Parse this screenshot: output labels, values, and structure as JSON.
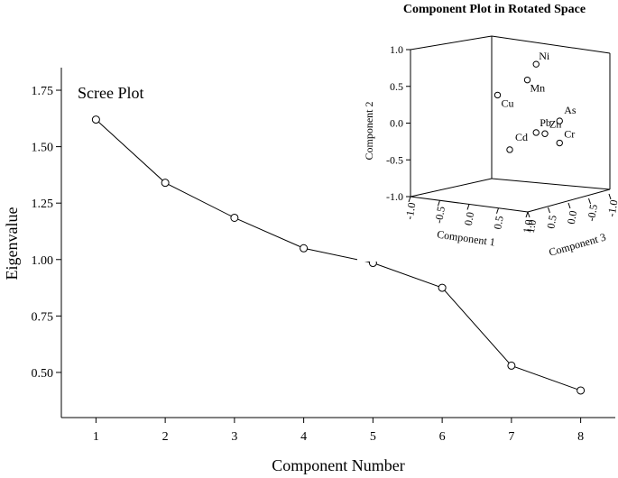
{
  "chart_data": [
    {
      "type": "line",
      "title": "Scree Plot",
      "xlabel": "Component Number",
      "ylabel": "Eigenvalue",
      "x": [
        1,
        2,
        3,
        4,
        5,
        6,
        7,
        8
      ],
      "series": [
        {
          "values": [
            1.62,
            1.34,
            1.185,
            1.05,
            0.985,
            0.875,
            0.53,
            0.42
          ]
        }
      ],
      "xticks": [
        "1",
        "2",
        "3",
        "4",
        "5",
        "6",
        "7",
        "8"
      ],
      "yticks": [
        "0.50",
        "0.75",
        "1.00",
        "1.25",
        "1.50",
        "1.75"
      ],
      "xlim": [
        0.5,
        8.5
      ],
      "ylim": [
        0.3,
        1.85
      ],
      "grid": false,
      "marker": "open-circle"
    },
    {
      "type": "scatter",
      "title": "Component Plot in Rotated Space",
      "projection": "3d",
      "axis_labels": {
        "component1": "Component 1",
        "component2": "Component 2",
        "component3": "Component 3"
      },
      "ticks": {
        "component1": [
          "-1.0",
          "-0.5",
          "0.0",
          "0.5",
          "1.0"
        ],
        "component2": [
          "-1.0",
          "-0.5",
          "0.0",
          "0.5",
          "1.0"
        ],
        "component3": [
          "1.0",
          "0.5",
          "0.0",
          "-0.5",
          "-1.0"
        ]
      },
      "points": [
        {
          "label": "Ni",
          "c1": 0.45,
          "c2": 0.83,
          "c3": 0.0
        },
        {
          "label": "Mn",
          "c1": 0.3,
          "c2": 0.6,
          "c3": 0.0
        },
        {
          "label": "Cu",
          "c1": 0.0,
          "c2": 0.4,
          "c3": 0.3
        },
        {
          "label": "Cd",
          "c1": 0.0,
          "c2": -0.38,
          "c3": 0.0
        },
        {
          "label": "Pb",
          "c1": 0.45,
          "c2": -0.1,
          "c3": 0.0
        },
        {
          "label": "Zn",
          "c1": 0.6,
          "c2": -0.1,
          "c3": 0.0
        },
        {
          "label": "As",
          "c1": 0.85,
          "c2": 0.1,
          "c3": 0.0
        },
        {
          "label": "Cr",
          "c1": 0.85,
          "c2": -0.2,
          "c3": 0.0
        }
      ],
      "grid": false,
      "marker": "open-circle"
    }
  ]
}
